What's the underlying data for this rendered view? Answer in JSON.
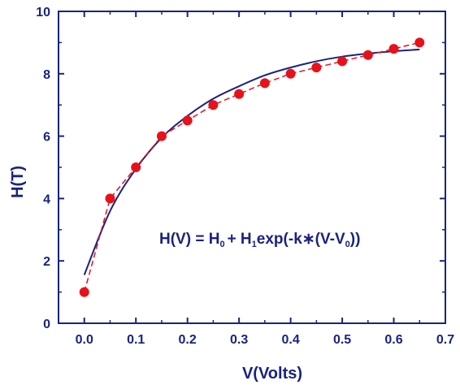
{
  "chart_data": {
    "type": "scatter",
    "xlabel": "V(Volts)",
    "ylabel": "H(T)",
    "xlim": [
      -0.05,
      0.7
    ],
    "ylim": [
      0,
      10
    ],
    "x_ticks": [
      0.0,
      0.1,
      0.2,
      0.3,
      0.4,
      0.5,
      0.6,
      0.7
    ],
    "x_tick_labels": [
      "0.0",
      "0.1",
      "0.2",
      "0.3",
      "0.4",
      "0.5",
      "0.6",
      "0.7"
    ],
    "y_ticks": [
      0,
      2,
      4,
      6,
      8,
      10
    ],
    "y_tick_labels": [
      "0",
      "2",
      "4",
      "6",
      "8",
      "10"
    ],
    "grid": false,
    "series": [
      {
        "kind": "points-with-dashed-line",
        "color": "#e8111a",
        "x": [
          0.0,
          0.05,
          0.1,
          0.15,
          0.2,
          0.25,
          0.3,
          0.35,
          0.4,
          0.45,
          0.5,
          0.55,
          0.6,
          0.65
        ],
        "y": [
          1.0,
          4.0,
          5.0,
          6.0,
          6.5,
          7.0,
          7.35,
          7.7,
          8.0,
          8.2,
          8.4,
          8.6,
          8.8,
          9.0
        ]
      },
      {
        "kind": "fit-line",
        "color": "#1a237e",
        "x": [
          0.0,
          0.05,
          0.1,
          0.15,
          0.2,
          0.25,
          0.3,
          0.35,
          0.4,
          0.45,
          0.5,
          0.55,
          0.6,
          0.65
        ],
        "y": [
          1.55,
          3.6,
          4.95,
          5.95,
          6.65,
          7.2,
          7.6,
          7.95,
          8.2,
          8.4,
          8.55,
          8.65,
          8.72,
          8.78
        ]
      }
    ],
    "annotation": {
      "parts": [
        "H(V) = H",
        "0",
        "+ H",
        "1",
        "exp(-k∗(V-V",
        "0",
        "))"
      ],
      "position": "center-right"
    }
  }
}
